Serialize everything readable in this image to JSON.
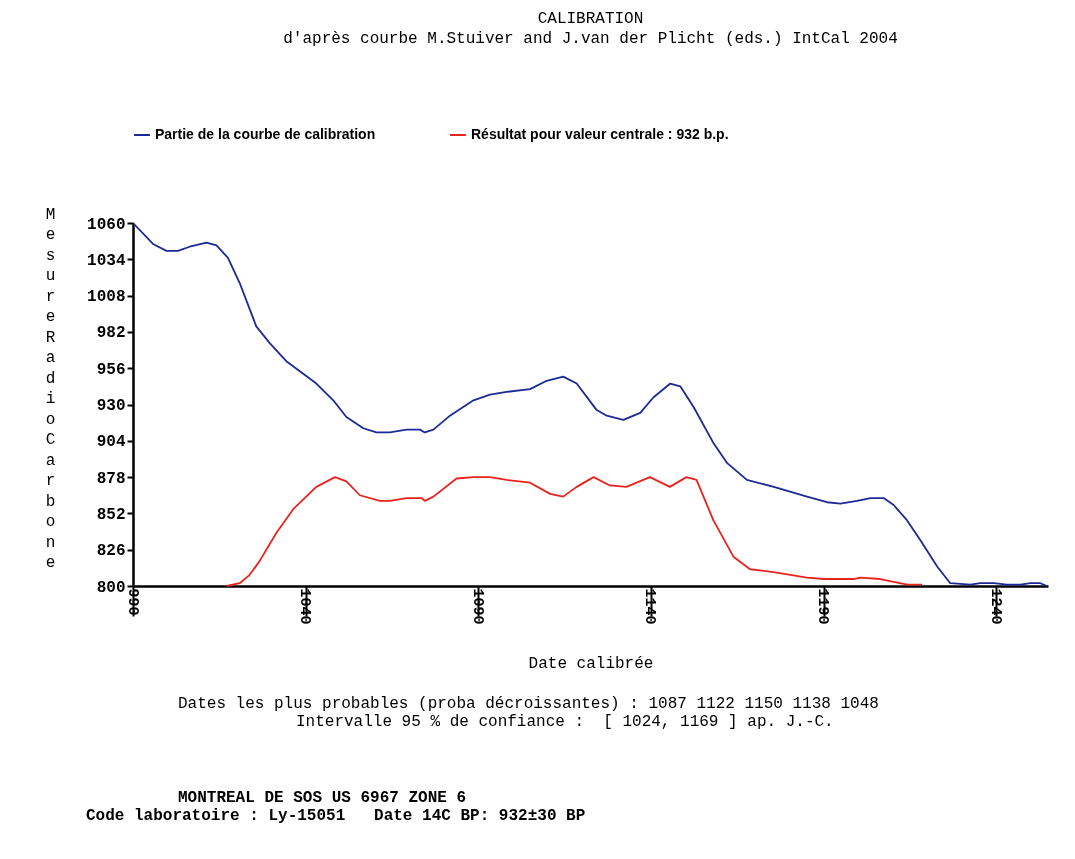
{
  "chart_data": {
    "type": "line",
    "title": "CALIBRATION",
    "subtitle": "d'après courbe   M.Stuiver and J.van der Plicht (eds.) IntCal 2004",
    "xlabel": "Date calibrée",
    "ylabel": "Mesure RadioCarbone",
    "xlim": [
      990,
      1255
    ],
    "xticks": [
      990,
      1040,
      1090,
      1140,
      1190,
      1240
    ],
    "ylim": [
      800,
      1060
    ],
    "yticks": [
      800,
      826,
      852,
      878,
      904,
      930,
      956,
      982,
      1008,
      1034,
      1060
    ],
    "grid": false,
    "legend": "top",
    "marker": "none",
    "line_style": "solid",
    "series": [
      {
        "name": "Partie de la courbe de calibration",
        "color": "#1c2a96",
        "x": [
          990,
          995.8,
          999.7,
          1003,
          1006.4,
          1011.3,
          1014.2,
          1017.5,
          1020.9,
          1025.7,
          1029.6,
          1034.4,
          1039.3,
          1043.1,
          1048,
          1051.8,
          1056.7,
          1060.5,
          1064.4,
          1069.2,
          1073.1,
          1074.5,
          1077,
          1081.8,
          1088.6,
          1093.4,
          1098.2,
          1105,
          1109.8,
          1114.6,
          1118.5,
          1124.3,
          1127.2,
          1132,
          1136.9,
          1140.7,
          1145.6,
          1148.5,
          1152.4,
          1158.2,
          1162.1,
          1167.8,
          1175.6,
          1185.2,
          1191,
          1194.9,
          1199.7,
          1203.6,
          1207.4,
          1210.3,
          1214.2,
          1218,
          1222.9,
          1226.7,
          1232.5,
          1235.4,
          1239.3,
          1243.1,
          1247,
          1249.9,
          1252.8,
          1254.7
        ],
        "values": [
          1060,
          1045,
          1040,
          1040,
          1043,
          1046,
          1044,
          1035,
          1017,
          986,
          974,
          961,
          952,
          945,
          933,
          921,
          913,
          910,
          910,
          912,
          912,
          910,
          912,
          922,
          933,
          937,
          939,
          941,
          947,
          950,
          945,
          926,
          922,
          919,
          924,
          935,
          945,
          943,
          928,
          902,
          888,
          876,
          871,
          864,
          860,
          859,
          861,
          863,
          863,
          858,
          847,
          833,
          814,
          802,
          801,
          802,
          802,
          801,
          801,
          802,
          802,
          800
        ]
      },
      {
        "name": "Résultat pour valeur centrale : 932 b.p.",
        "color": "#e8231e",
        "x": [
          1017.1,
          1020.9,
          1023.8,
          1026.7,
          1031.5,
          1036.4,
          1043.1,
          1048.5,
          1051.8,
          1055.7,
          1061.5,
          1064.4,
          1069.2,
          1073.6,
          1074.5,
          1077,
          1083.7,
          1088.6,
          1093.4,
          1098.2,
          1105,
          1110.8,
          1114.6,
          1118.5,
          1123.4,
          1128.1,
          1132.9,
          1139.7,
          1145.5,
          1150.3,
          1153.2,
          1158.1,
          1163.9,
          1168.7,
          1175.5,
          1185.2,
          1190,
          1198.7,
          1200.7,
          1206.4,
          1214.2,
          1218.5
        ],
        "values": [
          800,
          802,
          808,
          818,
          838,
          855,
          871,
          878,
          875,
          865,
          861,
          861,
          863,
          863,
          861,
          864,
          877,
          878,
          878,
          876,
          874,
          866,
          864,
          871,
          878,
          872,
          871,
          878,
          871,
          878,
          876,
          847,
          821,
          812,
          810,
          806,
          805,
          805,
          806,
          805,
          801,
          801
        ]
      }
    ],
    "annotations": [
      "Dates les plus probables (proba décroissantes) : 1087 1122 1150 1138 1048",
      "Intervalle 95 % de confiance :  [ 1024, 1169 ] ap. J.-C.",
      "MONTREAL DE SOS US 6967 ZONE 6",
      "Code laboratoire : Ly-15051   Date 14C BP: 932±30 BP"
    ]
  }
}
